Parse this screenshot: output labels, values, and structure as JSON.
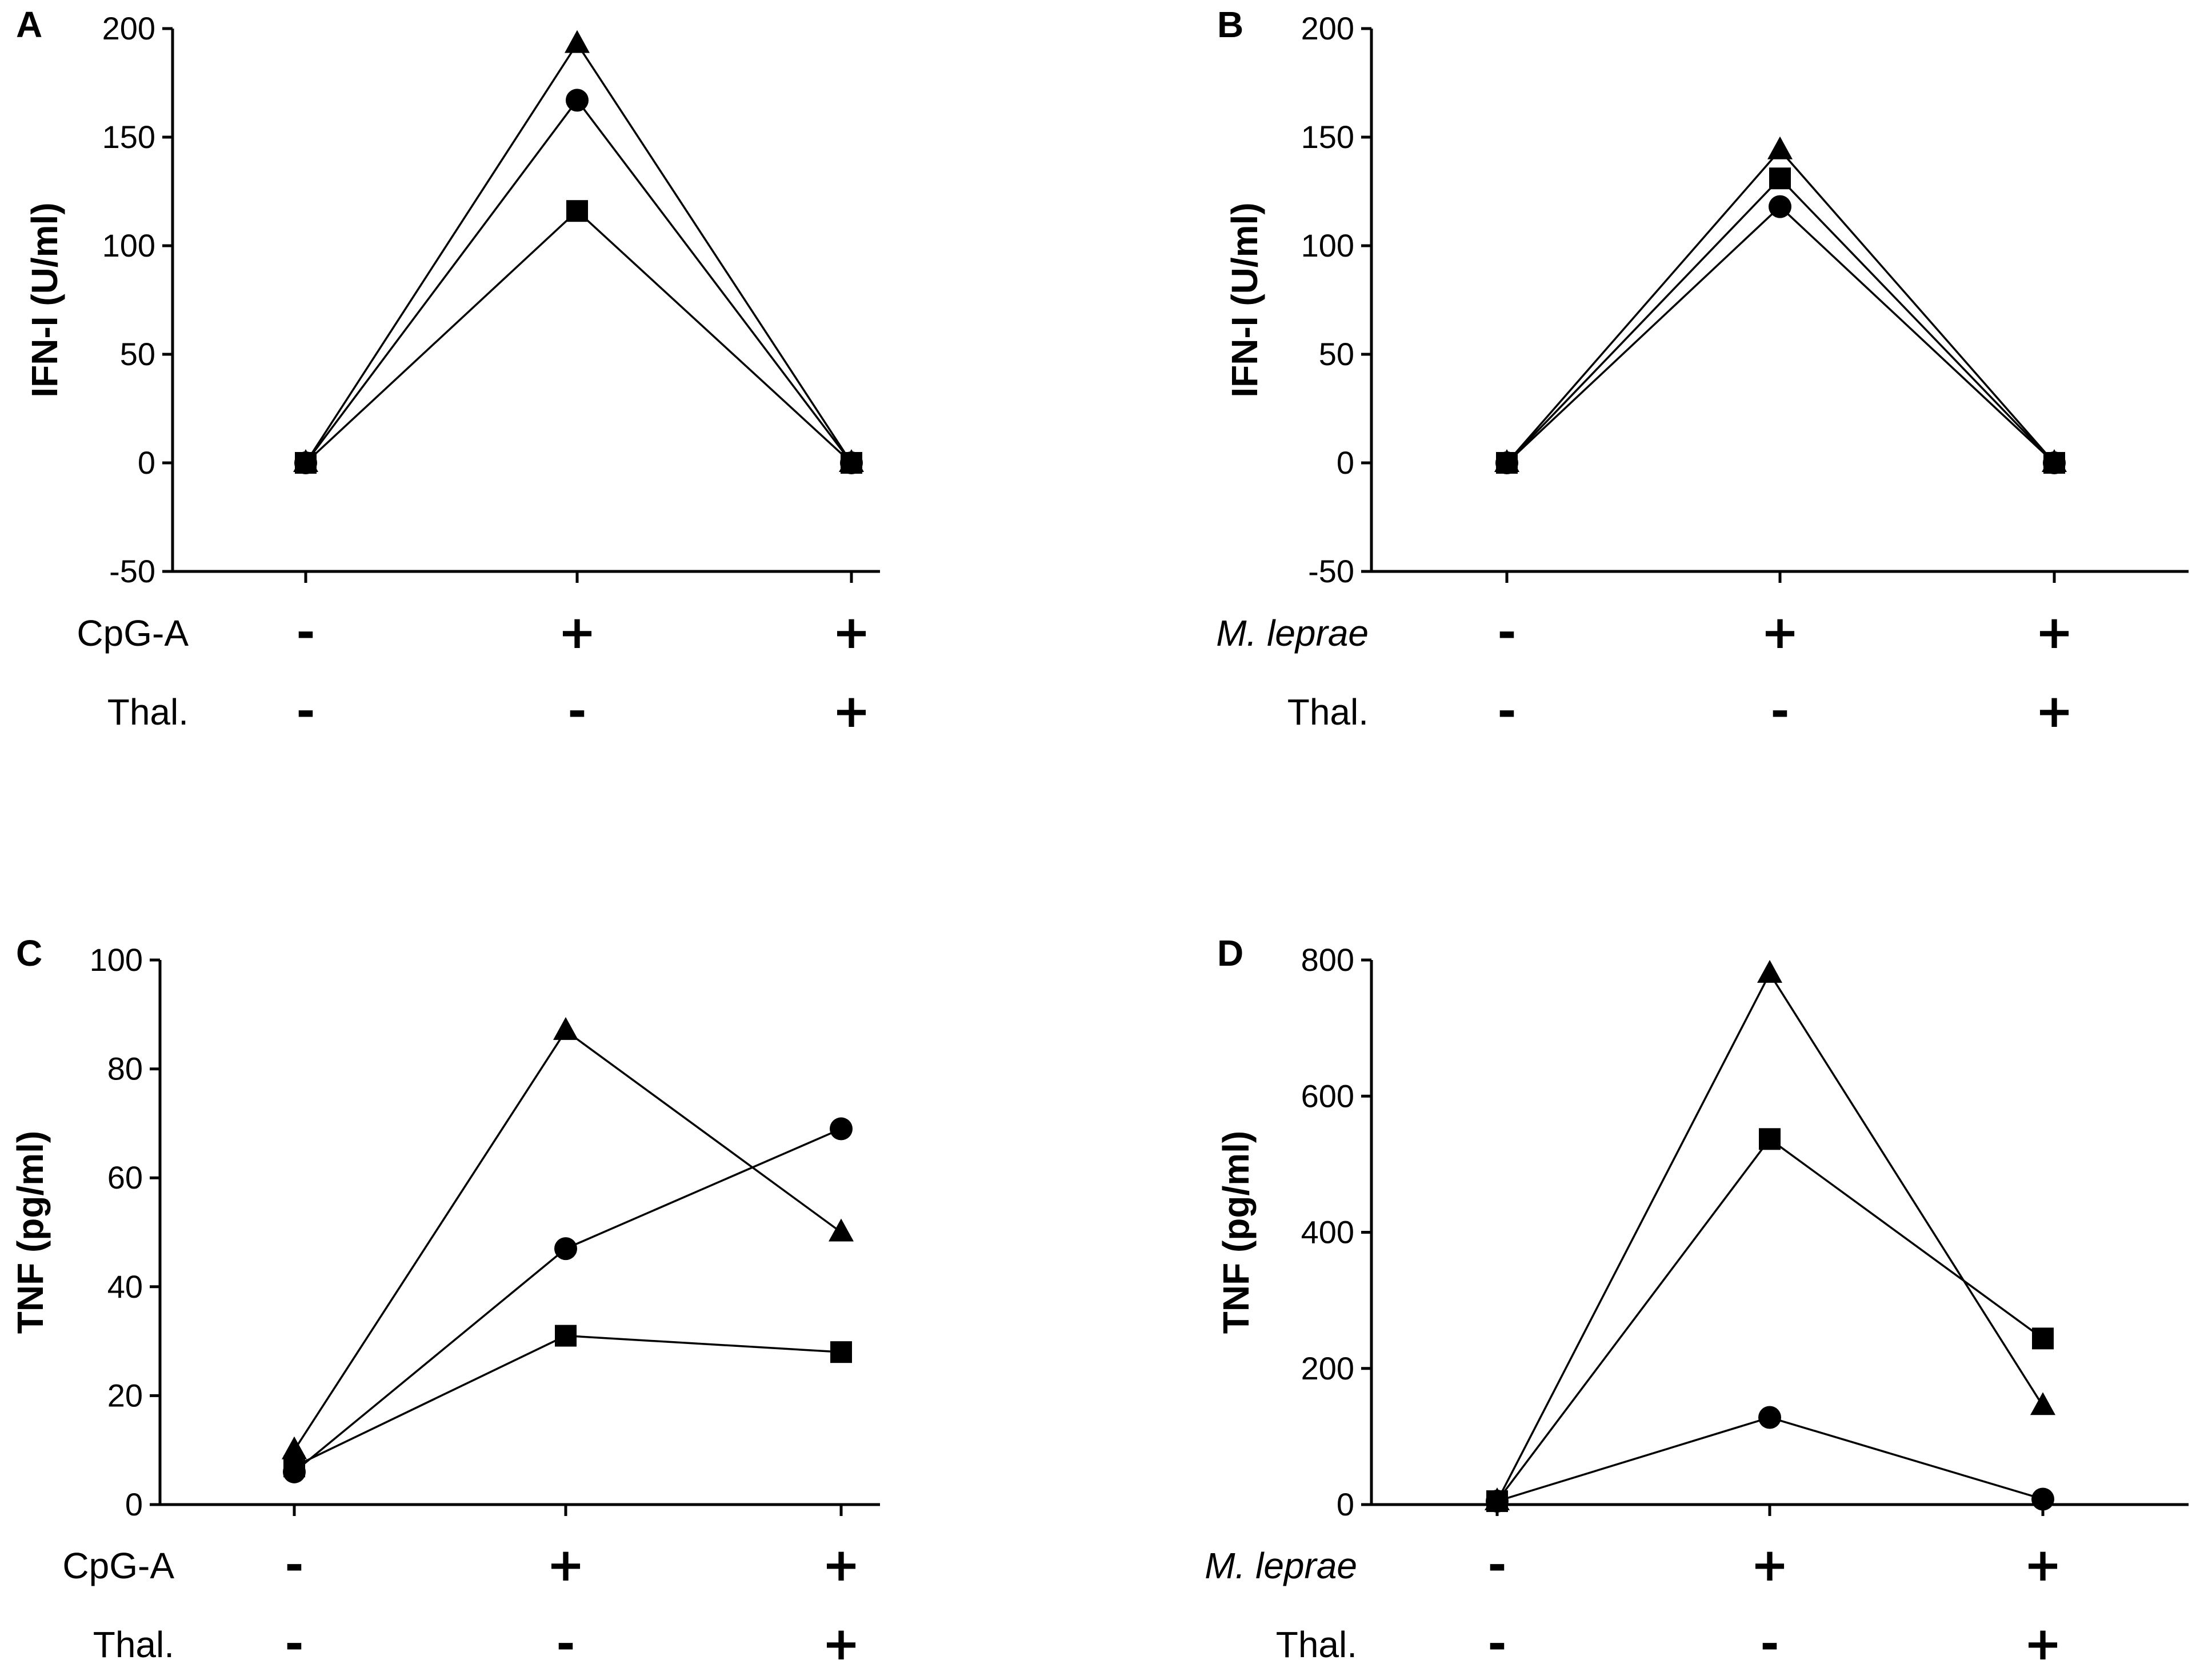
{
  "chart_data": [
    {
      "panel": "A",
      "type": "line",
      "ylabel": "IFN-I (U/ml)",
      "ylim": [
        -50,
        200
      ],
      "yticks": [
        -50,
        0,
        50,
        100,
        150,
        200
      ],
      "condition_rows": [
        {
          "label": "CpG-A",
          "italic": false,
          "signs": [
            "-",
            "+",
            "+"
          ]
        },
        {
          "label": "Thal.",
          "italic": false,
          "signs": [
            "-",
            "-",
            "+"
          ]
        }
      ],
      "series": [
        {
          "name": "triangle",
          "marker": "triangle",
          "values": [
            0,
            193,
            0
          ]
        },
        {
          "name": "circle",
          "marker": "circle",
          "values": [
            0,
            167,
            0
          ]
        },
        {
          "name": "square",
          "marker": "square",
          "values": [
            0,
            116,
            0
          ]
        }
      ]
    },
    {
      "panel": "B",
      "type": "line",
      "ylabel": "IFN-I (U/ml)",
      "ylim": [
        -50,
        200
      ],
      "yticks": [
        -50,
        0,
        50,
        100,
        150,
        200
      ],
      "condition_rows": [
        {
          "label": "M. leprae",
          "italic": true,
          "signs": [
            "-",
            "+",
            "+"
          ]
        },
        {
          "label": "Thal.",
          "italic": false,
          "signs": [
            "-",
            "-",
            "+"
          ]
        }
      ],
      "series": [
        {
          "name": "triangle",
          "marker": "triangle",
          "values": [
            0,
            144,
            0
          ]
        },
        {
          "name": "square",
          "marker": "square",
          "values": [
            0,
            131,
            0
          ]
        },
        {
          "name": "circle",
          "marker": "circle",
          "values": [
            0,
            118,
            0
          ]
        }
      ]
    },
    {
      "panel": "C",
      "type": "line",
      "ylabel": "TNF (pg/ml)",
      "ylim": [
        0,
        100
      ],
      "yticks": [
        0,
        20,
        40,
        60,
        80,
        100
      ],
      "condition_rows": [
        {
          "label": "CpG-A",
          "italic": false,
          "signs": [
            "-",
            "+",
            "+"
          ]
        },
        {
          "label": "Thal.",
          "italic": false,
          "signs": [
            "-",
            "-",
            "+"
          ]
        }
      ],
      "series": [
        {
          "name": "triangle",
          "marker": "triangle",
          "values": [
            10,
            87,
            50
          ]
        },
        {
          "name": "circle",
          "marker": "circle",
          "values": [
            6,
            47,
            69
          ]
        },
        {
          "name": "square",
          "marker": "square",
          "values": [
            7,
            31,
            28
          ]
        }
      ]
    },
    {
      "panel": "D",
      "type": "line",
      "ylabel": "TNF (pg/ml)",
      "ylim": [
        0,
        800
      ],
      "yticks": [
        0,
        200,
        400,
        600,
        800
      ],
      "condition_rows": [
        {
          "label": "M. leprae",
          "italic": true,
          "signs": [
            "-",
            "+",
            "+"
          ]
        },
        {
          "label": "Thal.",
          "italic": false,
          "signs": [
            "-",
            "-",
            "+"
          ]
        }
      ],
      "series": [
        {
          "name": "triangle",
          "marker": "triangle",
          "values": [
            5,
            780,
            145
          ]
        },
        {
          "name": "square",
          "marker": "square",
          "values": [
            5,
            537,
            244
          ]
        },
        {
          "name": "circle",
          "marker": "circle",
          "values": [
            5,
            128,
            8
          ]
        }
      ]
    }
  ]
}
